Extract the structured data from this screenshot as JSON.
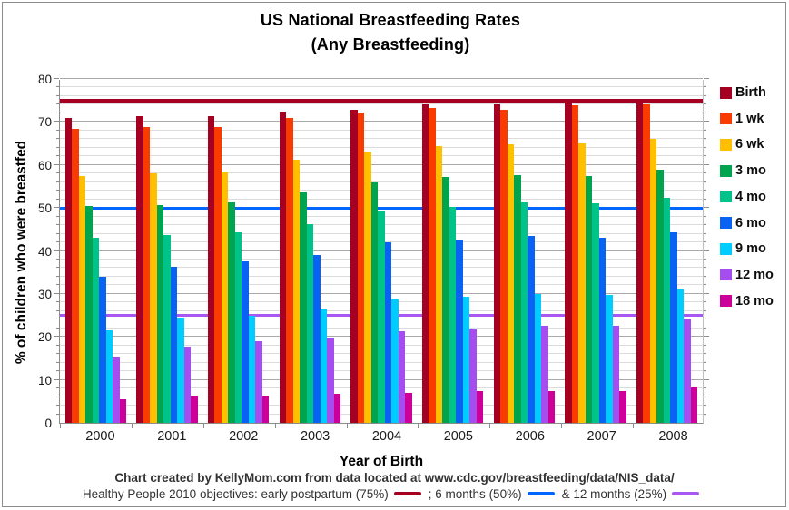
{
  "title": {
    "line1": "US National Breastfeeding Rates",
    "line2": "(Any Breastfeeding)"
  },
  "footer": {
    "credit": "Chart created by KellyMom.com from data located at www.cdc.gov/breastfeeding/data/NIS_data/",
    "objective_early": "Healthy People 2010 objectives: early postpartum (75%)",
    "objective_6mo": ";  6 months (50%)",
    "objective_12mo": "& 12 months (25%)"
  },
  "colors": {
    "ref_early": "#A50021",
    "ref_6mo": "#0066FF",
    "ref_12mo": "#A957F2"
  },
  "chart_data": {
    "type": "bar",
    "title": "US National Breastfeeding Rates (Any Breastfeeding)",
    "xlabel": "Year of Birth",
    "ylabel": "% of children who were breastfed",
    "ylim": [
      0,
      80
    ],
    "grid": {
      "minor_step": 2,
      "major_step": 10,
      "on": true
    },
    "legend_position": "right",
    "categories": [
      "2000",
      "2001",
      "2002",
      "2003",
      "2004",
      "2005",
      "2006",
      "2007",
      "2008"
    ],
    "series": [
      {
        "name": "Birth",
        "color": "#A50021",
        "values": [
          71.0,
          71.4,
          71.3,
          72.5,
          72.9,
          74.1,
          74.1,
          75.0,
          74.8
        ]
      },
      {
        "name": "1 wk",
        "color": "#F93B00",
        "values": [
          68.3,
          68.9,
          68.9,
          70.9,
          72.2,
          73.2,
          72.9,
          73.9,
          74.0
        ]
      },
      {
        "name": "6 wk",
        "color": "#FFC000",
        "values": [
          57.5,
          58.0,
          58.3,
          61.2,
          63.2,
          64.4,
          64.8,
          65.0,
          66.0
        ]
      },
      {
        "name": "3 mo",
        "color": "#00A44E",
        "values": [
          50.5,
          50.7,
          51.3,
          53.6,
          56.0,
          57.3,
          57.7,
          57.5,
          59.0
        ]
      },
      {
        "name": "4 mo",
        "color": "#00C389",
        "values": [
          43.0,
          43.8,
          44.3,
          46.3,
          49.5,
          50.3,
          51.4,
          51.0,
          52.4
        ]
      },
      {
        "name": "6 mo",
        "color": "#0A62F2",
        "values": [
          34.0,
          36.4,
          37.5,
          39.0,
          42.0,
          42.7,
          43.4,
          43.0,
          44.4
        ]
      },
      {
        "name": "9 mo",
        "color": "#00CCFF",
        "values": [
          21.5,
          24.4,
          25.0,
          26.3,
          28.7,
          29.3,
          30.0,
          29.7,
          31.0
        ]
      },
      {
        "name": "12 mo",
        "color": "#A64DF0",
        "values": [
          15.5,
          17.8,
          19.0,
          19.7,
          21.3,
          21.7,
          22.5,
          22.6,
          24.0
        ]
      },
      {
        "name": "18 mo",
        "color": "#CC0099",
        "values": [
          5.4,
          6.3,
          6.4,
          6.8,
          7.0,
          7.3,
          7.5,
          7.5,
          8.2
        ]
      }
    ],
    "reference_lines": [
      {
        "value": 75,
        "color": "#A50021",
        "thickness": 4,
        "label": "early postpartum (75%)"
      },
      {
        "value": 50,
        "color": "#0066FF",
        "thickness": 3,
        "label": "6 months (50%)"
      },
      {
        "value": 25,
        "color": "#A957F2",
        "thickness": 3,
        "label": "12 months (25%)"
      }
    ]
  }
}
